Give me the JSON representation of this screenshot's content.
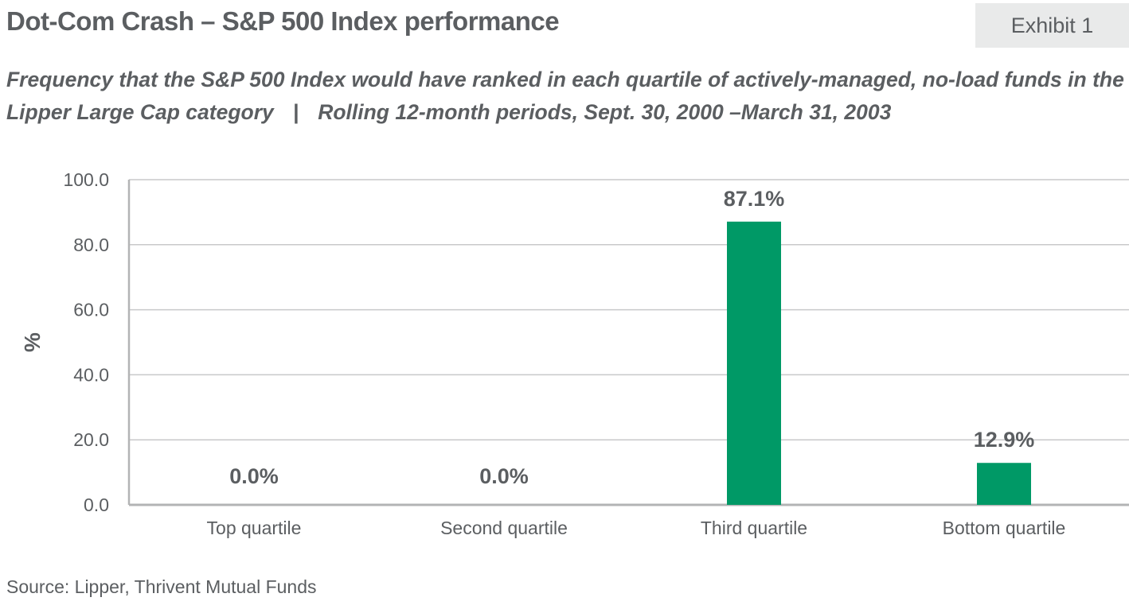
{
  "header": {
    "title": "Dot-Com Crash – S&P 500 Index performance",
    "exhibit_label": "Exhibit 1",
    "subtitle_part1": "Frequency that the S&P 500 Index would have ranked in each quartile of actively-managed, no-load funds in the Lipper Large Cap category",
    "subtitle_separator": "|",
    "subtitle_part2": "Rolling 12-month periods, Sept. 30, 2000 –March 31, 2003"
  },
  "footer": {
    "source": "Source: Lipper, Thrivent Mutual Funds"
  },
  "colors": {
    "bar": "#009966",
    "text": "#5b5e61",
    "grid": "#c8c9ca",
    "axis": "#b3b4b5",
    "badge_bg": "#e9eaea"
  },
  "chart_data": {
    "type": "bar",
    "categories": [
      "Top quartile",
      "Second quartile",
      "Third quartile",
      "Bottom quartile"
    ],
    "values": [
      0.0,
      0.0,
      87.1,
      12.9
    ],
    "data_labels": [
      "0.0%",
      "0.0%",
      "87.1%",
      "12.9%"
    ],
    "ylabel": "%",
    "xlabel": "",
    "ylim": [
      0,
      100
    ],
    "yticks": [
      0,
      20,
      40,
      60,
      80,
      100
    ],
    "ytick_labels": [
      "0.0",
      "20.0",
      "40.0",
      "60.0",
      "80.0",
      "100.0"
    ],
    "grid": true,
    "legend": "none"
  }
}
